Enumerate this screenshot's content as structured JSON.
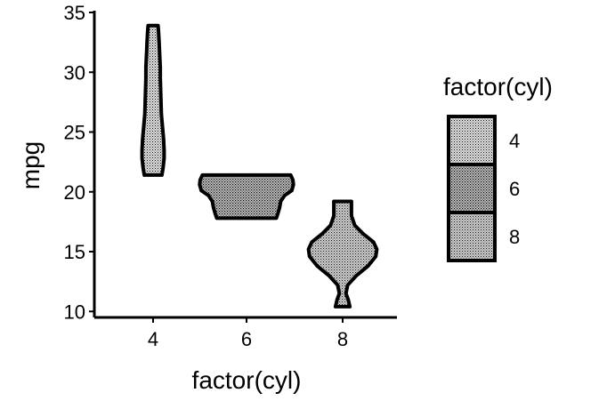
{
  "chart_data": {
    "type": "violin",
    "xlabel": "factor(cyl)",
    "ylabel": "mpg",
    "categories": [
      "4",
      "6",
      "8"
    ],
    "ylim": [
      9.5,
      35
    ],
    "yticks": [
      10,
      15,
      20,
      25,
      30,
      35
    ],
    "y_tick_labels": [
      "10",
      "15",
      "20",
      "25",
      "30",
      "35"
    ],
    "series": [
      {
        "category": "4",
        "min": 21.4,
        "max": 33.9,
        "fill": "#bdbdbd",
        "density": [
          [
            21.4,
            0.16
          ],
          [
            22.0,
            0.18
          ],
          [
            22.8,
            0.2
          ],
          [
            23.5,
            0.2
          ],
          [
            24.4,
            0.19
          ],
          [
            25.5,
            0.17
          ],
          [
            26.5,
            0.15
          ],
          [
            28.0,
            0.14
          ],
          [
            29.5,
            0.13
          ],
          [
            30.4,
            0.13
          ],
          [
            31.5,
            0.12
          ],
          [
            32.5,
            0.11
          ],
          [
            33.3,
            0.1
          ],
          [
            33.9,
            0.09
          ]
        ]
      },
      {
        "category": "6",
        "min": 17.8,
        "max": 21.4,
        "fill": "#a8a8a8",
        "density": [
          [
            17.8,
            0.54
          ],
          [
            18.2,
            0.57
          ],
          [
            18.7,
            0.6
          ],
          [
            19.2,
            0.62
          ],
          [
            19.7,
            0.69
          ],
          [
            20.1,
            0.82
          ],
          [
            20.6,
            0.85
          ],
          [
            21.0,
            0.84
          ],
          [
            21.4,
            0.8
          ]
        ]
      },
      {
        "category": "8",
        "min": 10.4,
        "max": 19.2,
        "fill": "#b4b4b4",
        "density": [
          [
            10.4,
            0.13
          ],
          [
            11.0,
            0.1
          ],
          [
            11.5,
            0.06
          ],
          [
            12.2,
            0.09
          ],
          [
            13.0,
            0.25
          ],
          [
            13.8,
            0.46
          ],
          [
            14.6,
            0.6
          ],
          [
            15.2,
            0.62
          ],
          [
            15.8,
            0.56
          ],
          [
            16.5,
            0.37
          ],
          [
            17.2,
            0.22
          ],
          [
            18.0,
            0.16
          ],
          [
            18.6,
            0.16
          ],
          [
            19.2,
            0.16
          ]
        ]
      }
    ],
    "legend": {
      "title": "factor(cyl)",
      "position": "right",
      "items": [
        {
          "label": "4",
          "fill": "#bdbdbd"
        },
        {
          "label": "6",
          "fill": "#a8a8a8"
        },
        {
          "label": "8",
          "fill": "#b4b4b4"
        }
      ]
    },
    "outline_color": "#000000",
    "grid": false
  }
}
